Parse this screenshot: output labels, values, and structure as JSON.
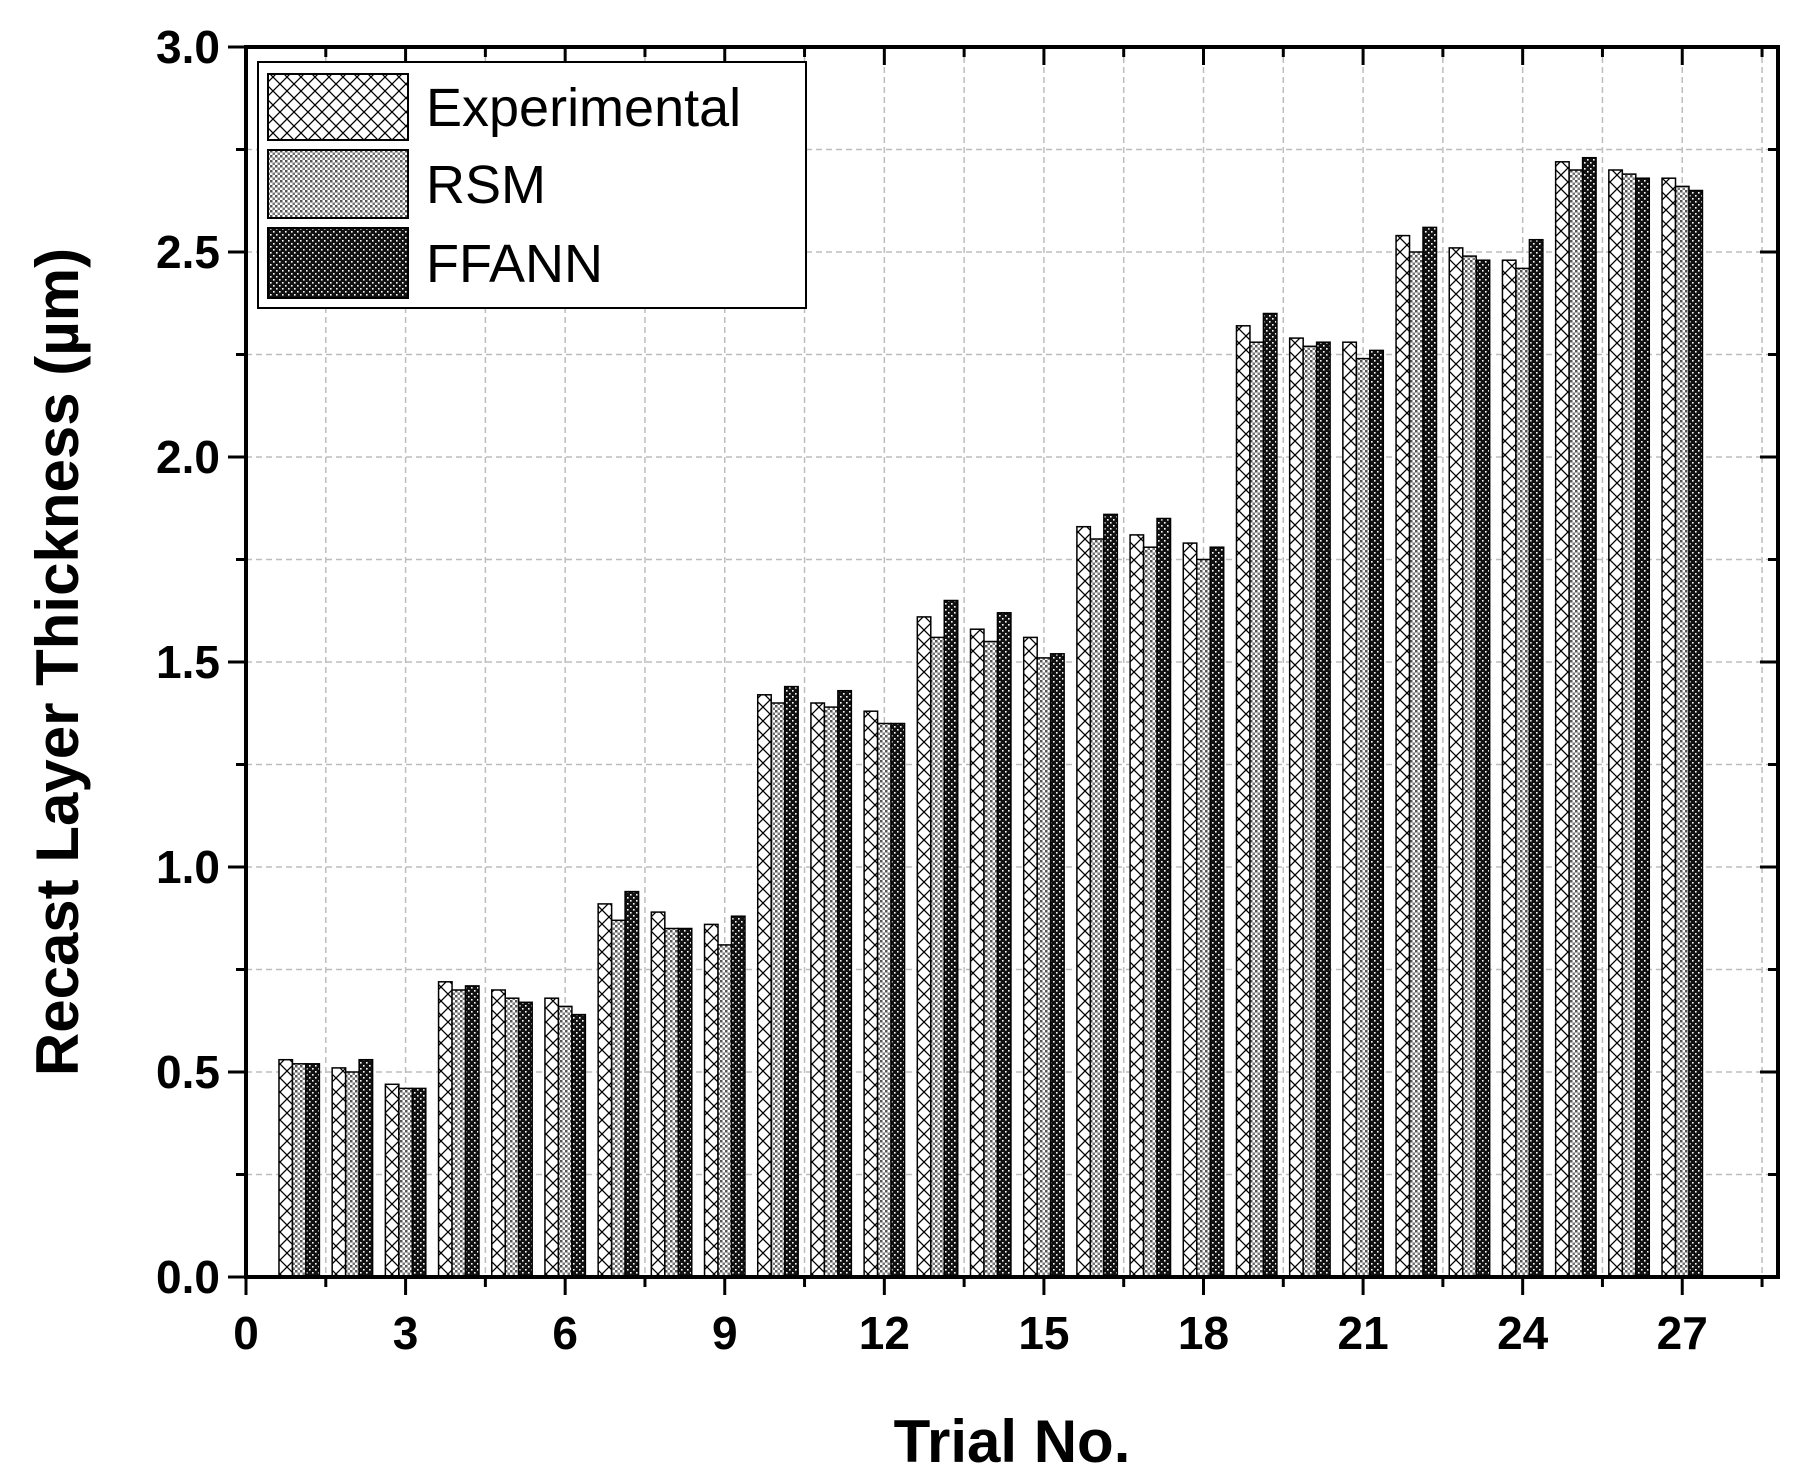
{
  "chart_data": {
    "type": "bar",
    "xlabel": "Trial No.",
    "ylabel": "Recast Layer Thickness (µm)",
    "xlim": [
      0,
      28.8
    ],
    "ylim": [
      0,
      3.0
    ],
    "x_ticks": [
      0,
      3,
      6,
      9,
      12,
      15,
      18,
      21,
      24,
      27
    ],
    "y_ticks": [
      0.0,
      0.5,
      1.0,
      1.5,
      2.0,
      2.5,
      3.0
    ],
    "x_tick_labels": [
      "0",
      "3",
      "6",
      "9",
      "12",
      "15",
      "18",
      "21",
      "24",
      "27"
    ],
    "y_tick_labels": [
      "0.0",
      "0.5",
      "1.0",
      "1.5",
      "2.0",
      "2.5",
      "3.0"
    ],
    "grid": true,
    "legend_position": "top-left",
    "categories": [
      1,
      2,
      3,
      4,
      5,
      6,
      7,
      8,
      9,
      10,
      11,
      12,
      13,
      14,
      15,
      16,
      17,
      18,
      19,
      20,
      21,
      22,
      23,
      24,
      25,
      26,
      27
    ],
    "series": [
      {
        "name": "Experimental",
        "pattern": "crosshatch",
        "values": [
          0.53,
          0.51,
          0.47,
          0.72,
          0.7,
          0.68,
          0.91,
          0.89,
          0.86,
          1.42,
          1.4,
          1.38,
          1.61,
          1.58,
          1.56,
          1.83,
          1.81,
          1.79,
          2.32,
          2.29,
          2.28,
          2.54,
          2.51,
          2.48,
          2.72,
          2.7,
          2.68
        ]
      },
      {
        "name": "RSM",
        "pattern": "fine-dots",
        "values": [
          0.52,
          0.5,
          0.46,
          0.7,
          0.68,
          0.66,
          0.87,
          0.85,
          0.81,
          1.4,
          1.39,
          1.35,
          1.56,
          1.55,
          1.51,
          1.8,
          1.78,
          1.75,
          2.28,
          2.27,
          2.24,
          2.5,
          2.49,
          2.46,
          2.7,
          2.69,
          2.66
        ]
      },
      {
        "name": "FFANN",
        "pattern": "dark-dots",
        "values": [
          0.52,
          0.53,
          0.46,
          0.71,
          0.67,
          0.64,
          0.94,
          0.85,
          0.88,
          1.44,
          1.43,
          1.35,
          1.65,
          1.62,
          1.52,
          1.86,
          1.85,
          1.78,
          2.35,
          2.28,
          2.26,
          2.56,
          2.48,
          2.53,
          2.73,
          2.68,
          2.65
        ]
      }
    ],
    "colors": {
      "axis": "#000000",
      "grid": "#bdbdbd",
      "background": "#ffffff"
    }
  }
}
